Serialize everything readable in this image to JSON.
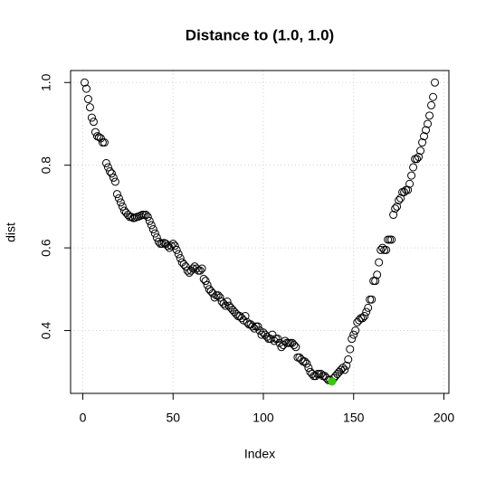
{
  "chart_data": {
    "type": "scatter",
    "title": "Distance to (1.0, 1.0)",
    "x_label": "Index",
    "y_label": "dist",
    "xlim": [
      -6.76,
      202.76
    ],
    "ylim": [
      0.248,
      1.029
    ],
    "xticks": [
      0,
      50,
      100,
      150,
      200
    ],
    "yticks": [
      0.4,
      0.6,
      0.8,
      {
        "value": 1,
        "label": "1.0"
      }
    ],
    "grid": true,
    "series": [
      {
        "color": "#000000",
        "filled": false,
        "x": [
          1,
          2,
          3,
          4,
          5,
          6,
          7,
          8,
          9,
          10,
          11,
          12,
          13,
          14,
          15,
          16,
          17,
          18,
          19,
          20,
          21,
          22,
          23,
          24,
          25,
          26,
          27,
          28,
          29,
          30,
          31,
          32,
          33,
          34,
          35,
          36,
          37,
          38,
          39,
          40,
          41,
          42,
          43,
          44,
          45,
          46,
          47,
          48,
          49,
          50,
          51,
          52,
          53,
          54,
          55,
          56,
          57,
          58,
          59,
          60,
          61,
          62,
          63,
          64,
          65,
          66,
          67,
          68,
          69,
          70,
          71,
          72,
          73,
          74,
          75,
          76,
          77,
          78,
          79,
          80,
          81,
          82,
          83,
          84,
          85,
          86,
          87,
          88,
          89,
          90,
          91,
          92,
          93,
          94,
          95,
          96,
          97,
          98,
          99,
          100,
          101,
          102,
          103,
          104,
          105,
          106,
          107,
          108,
          109,
          110,
          111,
          112,
          113,
          114,
          115,
          116,
          117,
          118,
          119,
          120,
          121,
          122,
          123,
          124,
          125,
          126,
          127,
          128,
          129,
          130,
          131,
          132,
          133,
          134,
          135,
          136,
          137,
          138,
          139,
          140,
          141,
          142,
          143,
          144,
          145,
          146,
          147,
          148,
          149,
          150,
          151,
          152,
          153,
          154,
          155,
          156,
          157,
          158,
          159,
          160,
          161,
          162,
          163,
          164,
          165,
          166,
          167,
          168,
          169,
          170,
          171,
          172,
          173,
          174,
          175,
          176,
          177,
          178,
          179,
          180,
          181,
          182,
          183,
          184,
          185,
          186,
          187,
          188,
          189,
          190,
          191,
          192,
          193,
          194,
          195
        ],
        "values": [
          1.0,
          0.985,
          0.96,
          0.94,
          0.915,
          0.905,
          0.88,
          0.87,
          0.868,
          0.865,
          0.855,
          0.855,
          0.805,
          0.795,
          0.785,
          0.78,
          0.77,
          0.76,
          0.73,
          0.72,
          0.71,
          0.7,
          0.69,
          0.685,
          0.68,
          0.675,
          0.675,
          0.672,
          0.673,
          0.675,
          0.676,
          0.678,
          0.68,
          0.68,
          0.68,
          0.675,
          0.665,
          0.655,
          0.645,
          0.635,
          0.625,
          0.615,
          0.61,
          0.61,
          0.612,
          0.61,
          0.605,
          0.6,
          0.605,
          0.61,
          0.605,
          0.595,
          0.585,
          0.575,
          0.565,
          0.56,
          0.555,
          0.545,
          0.54,
          0.545,
          0.55,
          0.555,
          0.55,
          0.545,
          0.545,
          0.55,
          0.525,
          0.52,
          0.51,
          0.5,
          0.495,
          0.49,
          0.48,
          0.485,
          0.485,
          0.48,
          0.47,
          0.465,
          0.46,
          0.47,
          0.46,
          0.455,
          0.45,
          0.445,
          0.44,
          0.435,
          0.435,
          0.43,
          0.425,
          0.435,
          0.42,
          0.415,
          0.415,
          0.41,
          0.405,
          0.41,
          0.41,
          0.4,
          0.39,
          0.395,
          0.39,
          0.385,
          0.38,
          0.38,
          0.39,
          0.375,
          0.38,
          0.38,
          0.37,
          0.36,
          0.365,
          0.375,
          0.37,
          0.37,
          0.37,
          0.37,
          0.365,
          0.36,
          0.335,
          0.335,
          0.33,
          0.325,
          0.325,
          0.32,
          0.31,
          0.3,
          0.295,
          0.29,
          0.29,
          0.295,
          0.295,
          0.295,
          0.29,
          0.29,
          0.285,
          0.28,
          0.28,
          0.277,
          0.285,
          0.29,
          0.295,
          0.3,
          0.305,
          0.31,
          0.305,
          0.315,
          0.33,
          0.355,
          0.38,
          0.39,
          0.4,
          0.42,
          0.425,
          0.43,
          0.43,
          0.435,
          0.445,
          0.455,
          0.475,
          0.475,
          0.52,
          0.52,
          0.535,
          0.565,
          0.595,
          0.6,
          0.595,
          0.595,
          0.62,
          0.62,
          0.62,
          0.68,
          0.695,
          0.7,
          0.715,
          0.72,
          0.735,
          0.735,
          0.74,
          0.74,
          0.755,
          0.775,
          0.795,
          0.815,
          0.815,
          0.82,
          0.835,
          0.855,
          0.87,
          0.885,
          0.9,
          0.92,
          0.945,
          0.965,
          1.0
        ]
      },
      {
        "color": "#33cc00",
        "filled": true,
        "x": [
          138
        ],
        "values": [
          0.277
        ]
      }
    ]
  }
}
